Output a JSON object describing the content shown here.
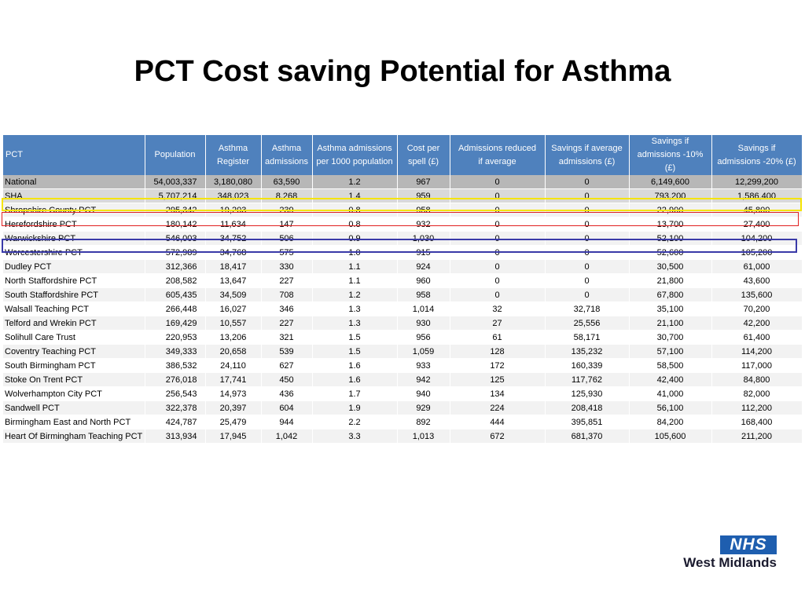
{
  "title": "PCT Cost saving Potential for Asthma",
  "logo": {
    "nhs": "NHS",
    "region": "West Midlands"
  },
  "colors": {
    "header_bg": "#4f81bd",
    "national_row": "#b7b7b7",
    "sha_row": "#d9d9d9",
    "highlight_yellow": "#f5e400",
    "highlight_red": "#e02020",
    "highlight_blue": "#3a3aa8",
    "nhs_blue": "#1e5eaf"
  },
  "table": {
    "headers": [
      [
        "PCT"
      ],
      [
        "Population"
      ],
      [
        "Asthma",
        "Register"
      ],
      [
        "Asthma",
        "admissions"
      ],
      [
        "Asthma admissions",
        "per 1000 population"
      ],
      [
        "Cost per",
        "spell (£)"
      ],
      [
        "Admissions reduced",
        "if average"
      ],
      [
        "Savings if average",
        "admissions (£)"
      ],
      [
        "Savings if",
        "admissions -10% (£)"
      ],
      [
        "Savings if",
        "admissions -20% (£)"
      ]
    ],
    "rows": [
      [
        "National",
        "54,003,337",
        "3,180,080",
        "63,590",
        "1.2",
        "967",
        "0",
        "0",
        "6,149,600",
        "12,299,200"
      ],
      [
        "SHA",
        "5,707,214",
        "348,023",
        "8,268",
        "1.4",
        "959",
        "0",
        "0",
        "793,200",
        "1,586,400"
      ],
      [
        "Shropshire County PCT",
        "295,342",
        "19,203",
        "239",
        "0.8",
        "958",
        "0",
        "0",
        "22,900",
        "45,800"
      ],
      [
        "Herefordshire PCT",
        "180,142",
        "11,634",
        "147",
        "0.8",
        "932",
        "0",
        "0",
        "13,700",
        "27,400"
      ],
      [
        "Warwickshire PCT",
        "546,003",
        "34,752",
        "506",
        "0.9",
        "1,030",
        "0",
        "0",
        "52,100",
        "104,200"
      ],
      [
        "Worcestershire PCT",
        "572,989",
        "34,768",
        "575",
        "1.0",
        "915",
        "0",
        "0",
        "52,600",
        "105,200"
      ],
      [
        "Dudley PCT",
        "312,366",
        "18,417",
        "330",
        "1.1",
        "924",
        "0",
        "0",
        "30,500",
        "61,000"
      ],
      [
        "North Staffordshire PCT",
        "208,582",
        "13,647",
        "227",
        "1.1",
        "960",
        "0",
        "0",
        "21,800",
        "43,600"
      ],
      [
        "South Staffordshire PCT",
        "605,435",
        "34,509",
        "708",
        "1.2",
        "958",
        "0",
        "0",
        "67,800",
        "135,600"
      ],
      [
        "Walsall Teaching PCT",
        "266,448",
        "16,027",
        "346",
        "1.3",
        "1,014",
        "32",
        "32,718",
        "35,100",
        "70,200"
      ],
      [
        "Telford and Wrekin PCT",
        "169,429",
        "10,557",
        "227",
        "1.3",
        "930",
        "27",
        "25,556",
        "21,100",
        "42,200"
      ],
      [
        "Solihull Care Trust",
        "220,953",
        "13,206",
        "321",
        "1.5",
        "956",
        "61",
        "58,171",
        "30,700",
        "61,400"
      ],
      [
        "Coventry Teaching PCT",
        "349,333",
        "20,658",
        "539",
        "1.5",
        "1,059",
        "128",
        "135,232",
        "57,100",
        "114,200"
      ],
      [
        "South Birmingham PCT",
        "386,532",
        "24,110",
        "627",
        "1.6",
        "933",
        "172",
        "160,339",
        "58,500",
        "117,000"
      ],
      [
        "Stoke On Trent PCT",
        "276,018",
        "17,741",
        "450",
        "1.6",
        "942",
        "125",
        "117,762",
        "42,400",
        "84,800"
      ],
      [
        "Wolverhampton City PCT",
        "256,543",
        "14,973",
        "436",
        "1.7",
        "940",
        "134",
        "125,930",
        "41,000",
        "82,000"
      ],
      [
        "Sandwell PCT",
        "322,378",
        "20,397",
        "604",
        "1.9",
        "929",
        "224",
        "208,418",
        "56,100",
        "112,200"
      ],
      [
        "Birmingham East and North PCT",
        "424,787",
        "25,479",
        "944",
        "2.2",
        "892",
        "444",
        "395,851",
        "84,200",
        "168,400"
      ],
      [
        "Heart Of Birmingham Teaching PCT",
        "313,934",
        "17,945",
        "1,042",
        "3.3",
        "1,013",
        "672",
        "681,370",
        "105,600",
        "211,200"
      ]
    ]
  }
}
